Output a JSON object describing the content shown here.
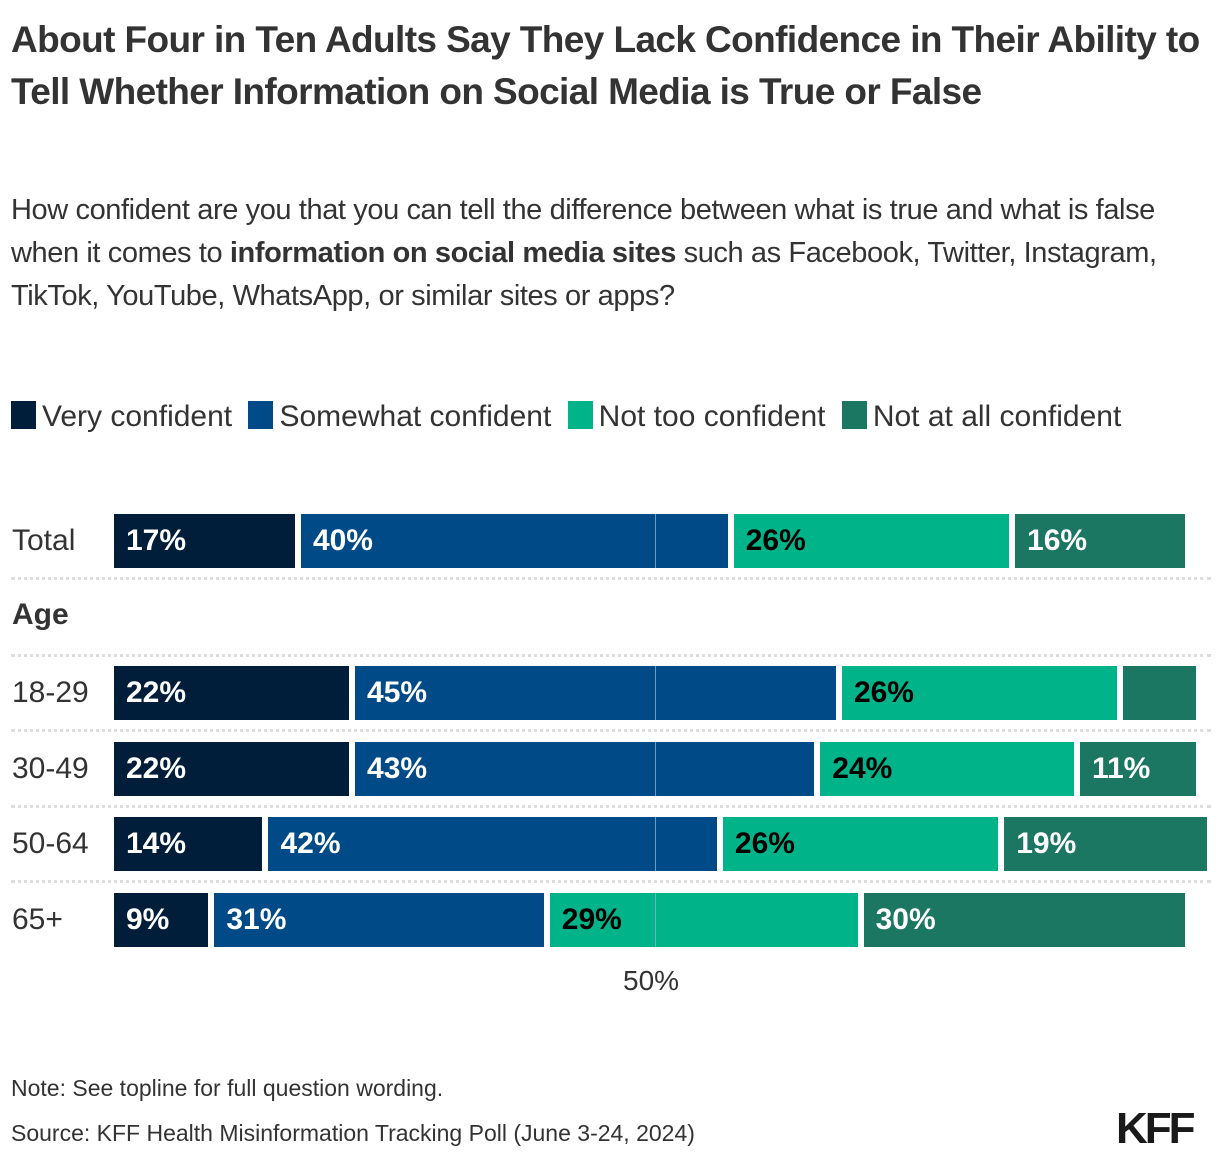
{
  "title": "About Four in Ten Adults Say They Lack Confidence in Their Ability to Tell Whether Information on Social Media is True or False",
  "subtitle": {
    "part1": "How confident are you that you can tell the difference between what is true and what is false when it comes to ",
    "bold": "information on social media sites",
    "part2": " such as Facebook, Twitter, Instagram, TikTok, YouTube, WhatsApp, or similar sites or apps?"
  },
  "chart_data": {
    "type": "bar",
    "orientation": "horizontal",
    "stacked": true,
    "title": "About Four in Ten Adults Say They Lack Confidence in Their Ability to Tell Whether Information on Social Media is True or False",
    "xlabel": "",
    "ylabel": "",
    "xlim": [
      0,
      100
    ],
    "reference_line": {
      "value": 50,
      "label": "50%"
    },
    "legend_position": "top",
    "series": [
      {
        "name": "Very confident",
        "color": "#001e3a",
        "label_color": "#ffffff"
      },
      {
        "name": "Somewhat confident",
        "color": "#004a87",
        "label_color": "#ffffff"
      },
      {
        "name": "Not too confident",
        "color": "#00b388",
        "label_color": "#000000"
      },
      {
        "name": "Not at all confident",
        "color": "#1b7662",
        "label_color": "#ffffff"
      }
    ],
    "groups": [
      {
        "label": null,
        "rows": [
          {
            "category": "Total",
            "values": [
              17,
              40,
              26,
              16
            ],
            "labels": [
              "17%",
              "40%",
              "26%",
              "16%"
            ]
          }
        ]
      },
      {
        "label": "Age",
        "rows": [
          {
            "category": "18-29",
            "values": [
              22,
              45,
              26,
              7
            ],
            "labels": [
              "22%",
              "45%",
              "26%",
              ""
            ]
          },
          {
            "category": "30-49",
            "values": [
              22,
              43,
              24,
              11
            ],
            "labels": [
              "22%",
              "43%",
              "24%",
              "11%"
            ]
          },
          {
            "category": "50-64",
            "values": [
              14,
              42,
              26,
              19
            ],
            "labels": [
              "14%",
              "42%",
              "26%",
              "19%"
            ]
          },
          {
            "category": "65+",
            "values": [
              9,
              31,
              29,
              30
            ],
            "labels": [
              "9%",
              "31%",
              "29%",
              "30%"
            ]
          }
        ]
      }
    ]
  },
  "note": "Note: See topline for full question wording.",
  "source": "Source: KFF Health Misinformation Tracking Poll (June 3-24, 2024)",
  "logo": "KFF"
}
